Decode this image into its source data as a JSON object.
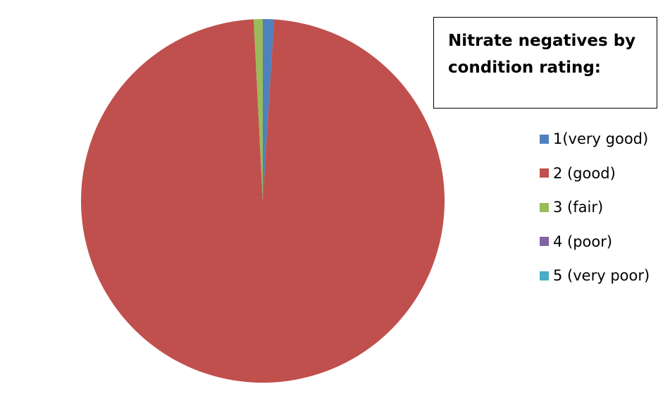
{
  "chart_data": {
    "type": "pie",
    "title": "Nitrate negatives by condition rating:",
    "categories": [
      "1(very good)",
      "2 (good)",
      "3 (fair)",
      "4 (poor)",
      "5 (very poor)"
    ],
    "values": [
      1.0,
      98.2,
      0.8,
      0,
      0
    ],
    "colors": [
      "#4F81BD",
      "#C0504D",
      "#9BBB59",
      "#8064A2",
      "#4BACC6"
    ],
    "legend": "right"
  }
}
